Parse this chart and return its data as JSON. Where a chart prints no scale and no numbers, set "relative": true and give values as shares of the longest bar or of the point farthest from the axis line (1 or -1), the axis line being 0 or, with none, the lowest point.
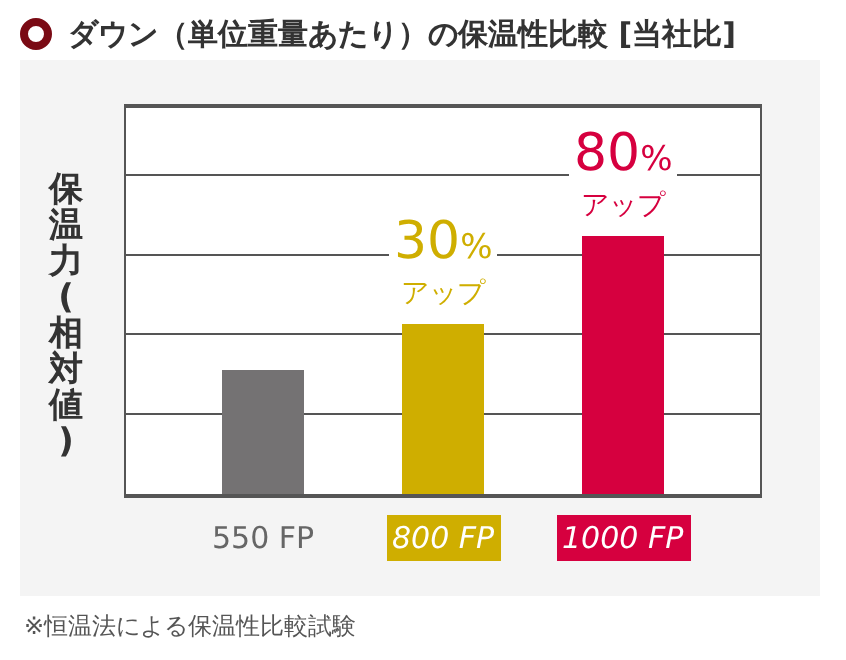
{
  "chart_data": {
    "type": "bar",
    "title": "ダウン（単位重量あたり）の保温性比較 [当社比]",
    "ylabel": "保温力(相対値)",
    "categories": [
      "550 FP",
      "800 FP",
      "1000 FP"
    ],
    "values": [
      0.48,
      0.66,
      1
    ],
    "colors": [
      "#747273",
      "#cfae00",
      "#d6003f"
    ],
    "relative": true,
    "grid": "y",
    "annotations": [
      {
        "text": "30%\nアップ",
        "x": "800 FP",
        "y": 0.66
      },
      {
        "text": "80%\nアップ",
        "x": "1000 FP",
        "y": 1
      },
      "※恒温法による保温性比較試験"
    ]
  }
}
